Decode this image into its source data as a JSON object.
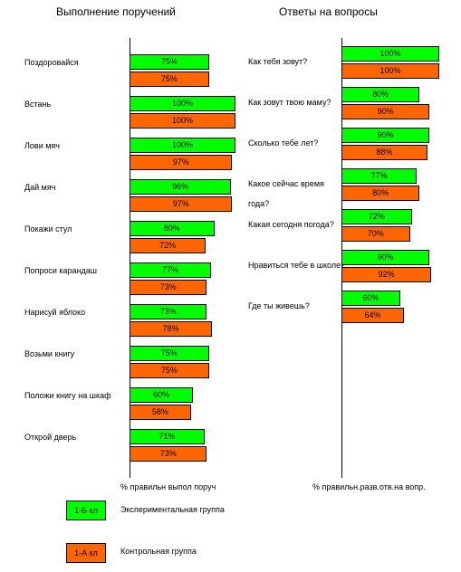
{
  "chart_data": [
    {
      "type": "barh",
      "title": "Выполнение поручений",
      "xlabel": "% правильн выпол поруч",
      "categories": [
        "Поздоровайся",
        "Встань",
        "Лови мяч",
        "Дай мяч",
        "Покажи стул",
        "Попроси карандаш",
        "Нарисуй яблоко",
        "Возьми книгу",
        "Положи книгу на шкаф",
        "Открой дверь"
      ],
      "series": [
        {
          "name": "1-Б кл",
          "group": "Экспериментальная группа",
          "color": "#00ff00",
          "values": [
            75,
            100,
            100,
            96,
            80,
            77,
            73,
            75,
            60,
            71
          ],
          "value_labels": [
            "75%",
            "100%",
            "100%",
            "96%",
            "80%",
            "77%",
            "73%",
            "75%",
            "60%",
            "71%"
          ]
        },
        {
          "name": "1-А кл",
          "group": "Контрольная группа",
          "color": "#ff6600",
          "values": [
            75,
            100,
            97,
            97,
            72,
            73,
            78,
            75,
            58,
            73
          ],
          "value_labels": [
            "75%",
            "100%",
            "97%",
            "97%",
            "72%",
            "73%",
            "78%",
            "75%",
            "58%",
            "73%"
          ]
        }
      ]
    },
    {
      "type": "barh",
      "title": "Ответы на вопросы",
      "xlabel": "% правильн.разв.отв.на вопр.",
      "categories": [
        "Как тебя зовут?",
        "Как зовут твою маму?",
        "Сколько тебе лет?",
        "Какое сейчас время года?",
        "Какая сегодня погода?",
        "Нравиться тебе в школе?",
        "Где ты живешь?"
      ],
      "series": [
        {
          "color": "#00ff00",
          "values": [
            100,
            80,
            90,
            77,
            72,
            90,
            60
          ],
          "value_labels": [
            "100%",
            "80%",
            "90%",
            "77%",
            "72%",
            "90%",
            "60%"
          ]
        },
        {
          "color": "#ff6600",
          "values": [
            100,
            90,
            88,
            80,
            70,
            92,
            64
          ],
          "value_labels": [
            "100%",
            "90%",
            "88%",
            "80%",
            "70%",
            "92%",
            "64%"
          ]
        }
      ]
    }
  ]
}
